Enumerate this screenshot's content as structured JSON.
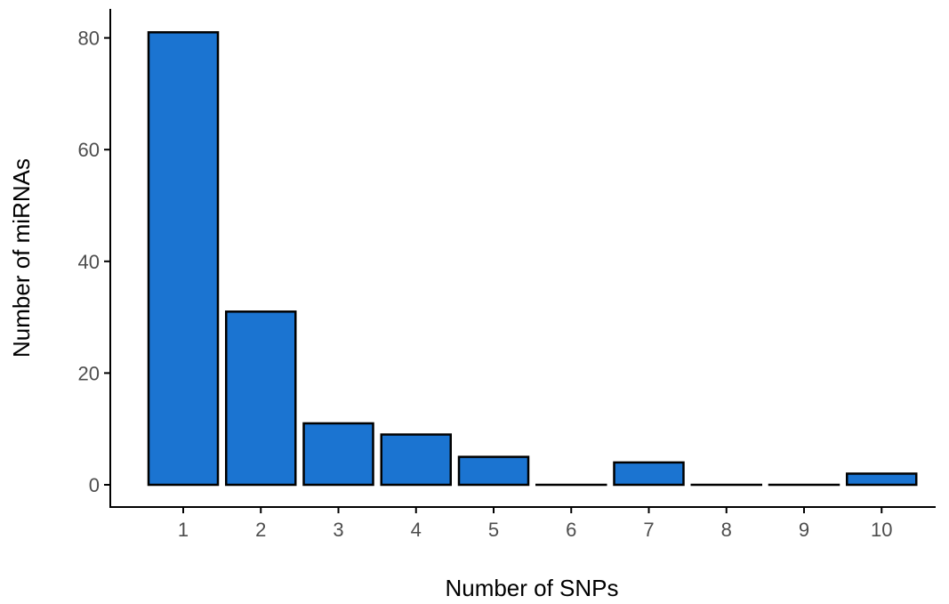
{
  "chart_data": {
    "type": "bar",
    "title": "",
    "xlabel": "Number of SNPs",
    "ylabel": "Number of miRNAs",
    "categories": [
      "1",
      "2",
      "3",
      "4",
      "5",
      "6",
      "7",
      "8",
      "9",
      "10"
    ],
    "values": [
      81,
      31,
      11,
      9,
      5,
      0,
      4,
      0,
      0,
      2
    ],
    "yticks": [
      0,
      20,
      40,
      60,
      80
    ],
    "ylim": [
      -4,
      85
    ],
    "grid": false,
    "legend": "none",
    "colors": {
      "bar_fill": "#1b74d1",
      "bar_stroke": "#000000",
      "axis": "#000000",
      "tick_label": "#4d4d4d"
    }
  }
}
